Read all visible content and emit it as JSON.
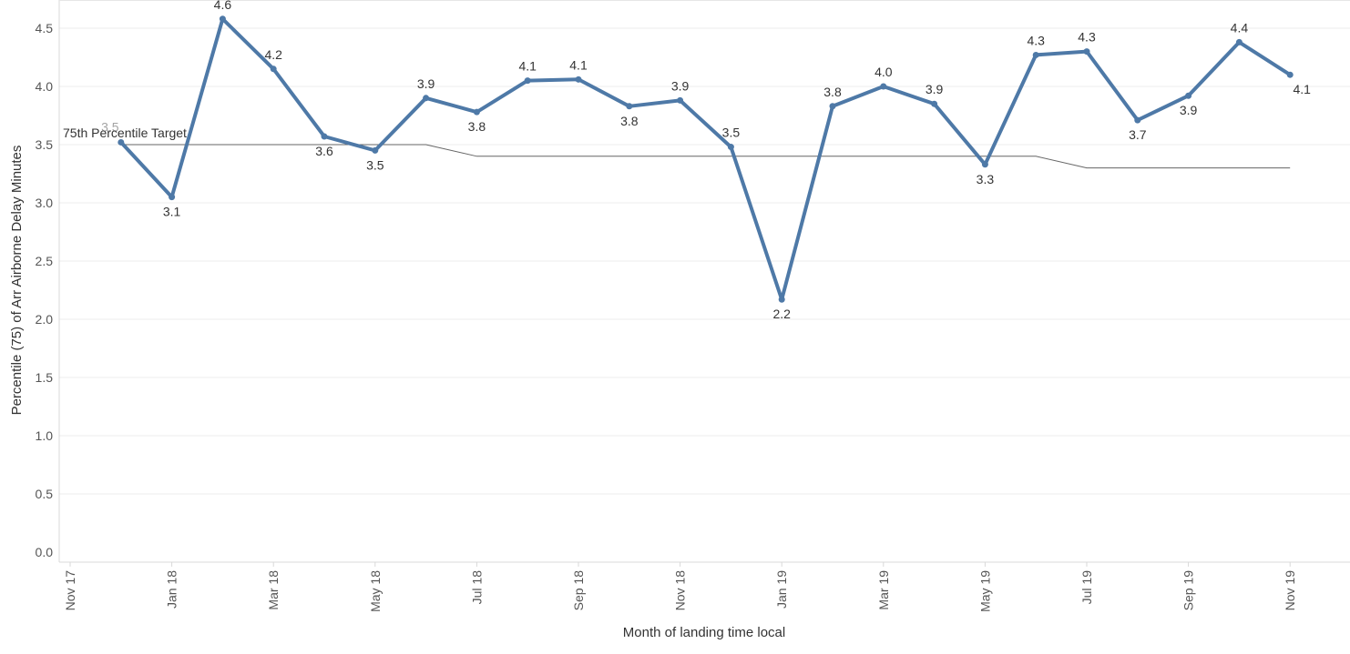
{
  "chart_data": {
    "type": "line",
    "xlabel": "Month of landing time local",
    "ylabel": "Percentile (75) of Arr Airborne Delay Minutes",
    "ylim": [
      0,
      4.75
    ],
    "y_ticks": [
      "0.0",
      "0.5",
      "1.0",
      "1.5",
      "2.0",
      "2.5",
      "3.0",
      "3.5",
      "4.0",
      "4.5"
    ],
    "x_tick_labels": [
      "Nov 17",
      "Jan 18",
      "Mar 18",
      "May 18",
      "Jul 18",
      "Sep 18",
      "Nov 18",
      "Jan 19",
      "Mar 19",
      "May 19",
      "Jul 19",
      "Sep 19",
      "Nov 19"
    ],
    "grid": true,
    "series": [
      {
        "color": "#4e79a7",
        "points": [
          {
            "month": "Dec 17",
            "value": 3.52,
            "label": "3.5"
          },
          {
            "month": "Jan 18",
            "value": 3.05,
            "label": "3.1"
          },
          {
            "month": "Feb 18",
            "value": 4.58,
            "label": "4.6"
          },
          {
            "month": "Mar 18",
            "value": 4.15,
            "label": "4.2"
          },
          {
            "month": "Apr 18",
            "value": 3.57,
            "label": "3.6"
          },
          {
            "month": "May 18",
            "value": 3.45,
            "label": "3.5"
          },
          {
            "month": "Jun 18",
            "value": 3.9,
            "label": "3.9"
          },
          {
            "month": "Jul 18",
            "value": 3.78,
            "label": "3.8"
          },
          {
            "month": "Aug 18",
            "value": 4.05,
            "label": "4.1"
          },
          {
            "month": "Sep 18",
            "value": 4.06,
            "label": "4.1"
          },
          {
            "month": "Oct 18",
            "value": 3.83,
            "label": "3.8"
          },
          {
            "month": "Nov 18",
            "value": 3.88,
            "label": "3.9"
          },
          {
            "month": "Dec 18",
            "value": 3.48,
            "label": "3.5"
          },
          {
            "month": "Jan 19",
            "value": 2.17,
            "label": "2.2"
          },
          {
            "month": "Feb 19",
            "value": 3.83,
            "label": "3.8"
          },
          {
            "month": "Mar 19",
            "value": 4.0,
            "label": "4.0"
          },
          {
            "month": "Apr 19",
            "value": 3.85,
            "label": "3.9"
          },
          {
            "month": "May 19",
            "value": 3.33,
            "label": "3.3"
          },
          {
            "month": "Jun 19",
            "value": 4.27,
            "label": "4.3"
          },
          {
            "month": "Jul 19",
            "value": 4.3,
            "label": "4.3"
          },
          {
            "month": "Aug 19",
            "value": 3.71,
            "label": "3.7"
          },
          {
            "month": "Sep 19",
            "value": 3.92,
            "label": "3.9"
          },
          {
            "month": "Oct 19",
            "value": 4.38,
            "label": "4.4"
          },
          {
            "month": "Nov 19",
            "value": 4.1,
            "label": "4.1"
          }
        ]
      }
    ],
    "reference_line": {
      "label": "75th Percentile Target",
      "color": "#666666",
      "values": [
        3.5,
        3.5,
        3.5,
        3.5,
        3.5,
        3.5,
        3.5,
        3.4,
        3.4,
        3.4,
        3.4,
        3.4,
        3.4,
        3.4,
        3.4,
        3.4,
        3.4,
        3.4,
        3.4,
        3.3,
        3.3,
        3.3,
        3.3,
        3.3
      ]
    }
  }
}
